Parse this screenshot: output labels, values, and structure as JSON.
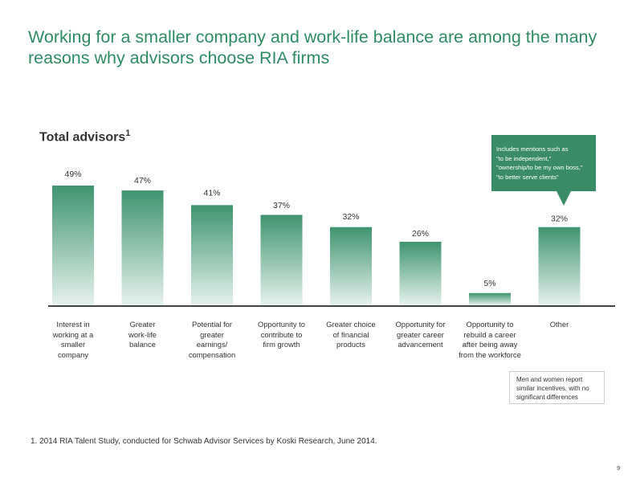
{
  "slide": {
    "title": "Working for a smaller company and work-life balance are among the many reasons why advisors choose RIA firms",
    "page_number": "9"
  },
  "chart_data": {
    "type": "bar",
    "title": "Total advisors",
    "title_footnote_marker": "1",
    "categories": [
      "Interest in\nworking at a\nsmaller\ncompany",
      "Greater\nwork-life\nbalance",
      "Potential for\ngreater\nearnings/\ncompensation",
      "Opportunity to\ncontribute to\nfirm growth",
      "Greater choice\nof financial\nproducts",
      "Opportunity for\ngreater career\nadvancement",
      "Opportunity to\nrebuild a career\nafter being away\nfrom the workforce",
      "Other"
    ],
    "values": [
      49,
      47,
      41,
      37,
      32,
      26,
      5,
      32
    ],
    "value_labels": [
      "49%",
      "47%",
      "41%",
      "37%",
      "32%",
      "26%",
      "5%",
      "32%"
    ],
    "ylim": [
      0,
      49
    ],
    "grid": false,
    "bar_color_top": "#3f9470",
    "bar_color_bottom": "#e6f2ec",
    "baseline_color": "#444444"
  },
  "callout": {
    "text": "Includes mentions such as\n\"to be independent,\"\n\"ownership/to be my own boss,\"\n\"to better serve clients\"",
    "color": "#3a8c66"
  },
  "note": {
    "text": "Men and women report\nsimilar incentives, with no\nsignificant differences"
  },
  "footnote": "1.  2014 RIA Talent Study, conducted for Schwab Advisor Services by Koski Research, June 2014."
}
